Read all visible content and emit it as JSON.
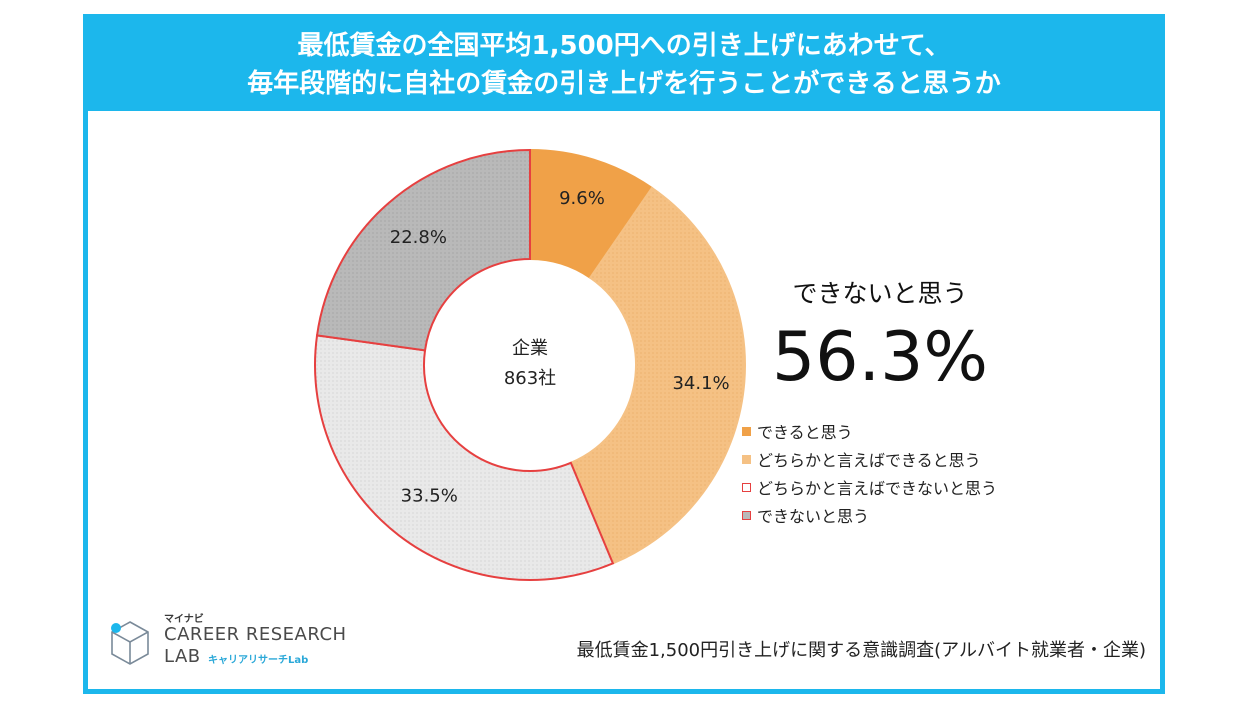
{
  "chart_data": {
    "type": "pie",
    "title": [
      "最低賃金の全国平均1,500円への引き上げにあわせて、",
      "毎年段階的に自社の賃金の引き上げを行うことができると思うか"
    ],
    "center_label": [
      "企業",
      "863社"
    ],
    "categories": [
      "できると思う",
      "どちらかと言えばできると思う",
      "どちらかと言えばできないと思う",
      "できないと思う"
    ],
    "values": [
      9.6,
      34.1,
      33.5,
      22.8
    ],
    "value_labels": [
      "9.6%",
      "34.1%",
      "33.5%",
      "22.8%"
    ],
    "colors": [
      "#f0a148",
      "#f5c184",
      "#e8e8e8",
      "#b9b9b9"
    ],
    "slice_borders": [
      "#f0a148",
      "#f5c184",
      "#e64040",
      "#e64040"
    ],
    "summary_label": "できないと思う",
    "summary_value": "56.3%",
    "legend_position": "right"
  },
  "source_text": "最低賃金1,500円引き上げに関する意識調査(アルバイト就業者・企業)",
  "logo": {
    "brand_small": "マイナビ",
    "line1": "CAREER RESEARCH",
    "line2": "LAB",
    "sub": "キャリアリサーチLab"
  },
  "colors": {
    "accent": "#1cb7ec",
    "border_red": "#e64040"
  }
}
